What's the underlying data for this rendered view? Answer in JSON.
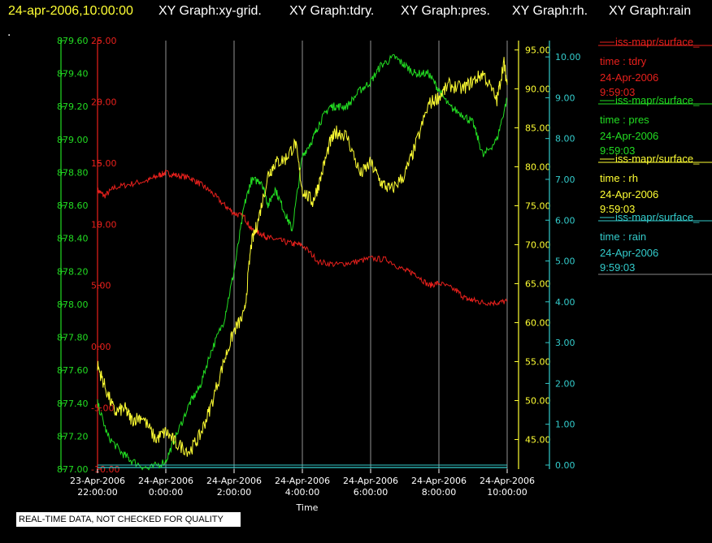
{
  "header": {
    "datetime": "24-apr-2006,10:00:00",
    "titles": [
      "XY Graph:xy-grid.",
      "XY Graph:tdry.",
      "XY Graph:pres.",
      "XY Graph:rh.",
      "XY Graph:rain"
    ],
    "dot": "."
  },
  "footer_note": "REAL-TIME DATA, NOT CHECKED FOR QUALITY",
  "colors": {
    "background": "#000000",
    "header_date": "#ffff33",
    "header_titles": "#ffffff",
    "tdry": "#e8201c",
    "pres": "#22dd22",
    "rh": "#ffff33",
    "rain": "#33cccc",
    "grid": "#b8b8b8",
    "axis_text": "#ffffff"
  },
  "legend": [
    {
      "line": "iss-mapr/surface_",
      "variable": "time : tdry",
      "date": "24-Apr-2006",
      "time": "9:59:03",
      "color": "#e8201c"
    },
    {
      "line": "iss-mapr/surface_",
      "variable": "time : pres",
      "date": "24-Apr-2006",
      "time": "9:59:03",
      "color": "#22dd22"
    },
    {
      "line": "iss-mapr/surface_",
      "variable": "time : rh",
      "date": "24-Apr-2006",
      "time": "9:59:03",
      "color": "#ffff33"
    },
    {
      "line": "iss-mapr/surface_",
      "variable": "time : rain",
      "date": "24-Apr-2006",
      "time": "9:59:03",
      "color": "#33cccc"
    }
  ],
  "chart_data": {
    "type": "line",
    "xlabel": "Time",
    "x_ticks": [
      {
        "date": "23-Apr-2006",
        "time": "22:00:00"
      },
      {
        "date": "24-Apr-2006",
        "time": "0:00:00"
      },
      {
        "date": "24-Apr-2006",
        "time": "2:00:00"
      },
      {
        "date": "24-Apr-2006",
        "time": "4:00:00"
      },
      {
        "date": "24-Apr-2006",
        "time": "6:00:00"
      },
      {
        "date": "24-Apr-2006",
        "time": "8:00:00"
      },
      {
        "date": "24-Apr-2006",
        "time": "10:00:00"
      }
    ],
    "x_range_hours": [
      -2,
      10
    ],
    "grid": "vertical lines at each time tick",
    "axes": [
      {
        "id": "pres",
        "side": "left-outer",
        "color": "#22dd22",
        "range": [
          877.0,
          879.6
        ],
        "ticks": [
          "877.00",
          "877.20",
          "877.40",
          "877.60",
          "877.80",
          "878.00",
          "878.20",
          "878.40",
          "878.60",
          "878.80",
          "879.00",
          "879.20",
          "879.40",
          "879.60"
        ]
      },
      {
        "id": "tdry",
        "side": "left-inner",
        "color": "#e8201c",
        "range": [
          -10,
          25
        ],
        "ticks": [
          "-10.00",
          "-5.00",
          "0.00",
          "5.00",
          "10.00",
          "15.00",
          "20.00",
          "25.00"
        ]
      },
      {
        "id": "rh",
        "side": "right-inner",
        "color": "#ffff33",
        "range": [
          41.2,
          96.2
        ],
        "ticks": [
          "45.00",
          "50.00",
          "55.00",
          "60.00",
          "65.00",
          "70.00",
          "75.00",
          "80.00",
          "85.00",
          "90.00",
          "95.00"
        ]
      },
      {
        "id": "rain",
        "side": "right-outer",
        "color": "#33cccc",
        "range": [
          -0.1,
          10.4
        ],
        "ticks": [
          "0.00",
          "1.00",
          "2.00",
          "3.00",
          "4.00",
          "5.00",
          "6.00",
          "7.00",
          "8.00",
          "9.00",
          "10.00"
        ]
      }
    ],
    "series": [
      {
        "name": "time : tdry",
        "axis": "tdry",
        "x": [
          22.0,
          22.2,
          22.5,
          23.0,
          23.5,
          23.8,
          24.0,
          24.3,
          24.7,
          25.0,
          25.3,
          25.7,
          26.0,
          26.3,
          26.5,
          26.8,
          27.0,
          27.3,
          27.7,
          28.0,
          28.5,
          29.0,
          29.5,
          30.0,
          30.5,
          31.0,
          31.3,
          31.7,
          32.0,
          32.5,
          32.8,
          33.0,
          33.3,
          33.7,
          34.0
        ],
        "y": [
          12.8,
          12.3,
          13.0,
          13.3,
          13.6,
          14.0,
          14.2,
          14.0,
          13.8,
          13.3,
          12.7,
          11.6,
          10.9,
          10.6,
          9.6,
          9.2,
          8.9,
          8.7,
          8.4,
          8.3,
          6.9,
          6.7,
          6.9,
          7.2,
          7.1,
          6.2,
          6.0,
          5.0,
          5.2,
          4.6,
          3.9,
          3.8,
          3.6,
          3.6,
          3.7
        ]
      },
      {
        "name": "time : pres",
        "axis": "pres",
        "x": [
          22.0,
          22.3,
          22.7,
          23.0,
          23.5,
          24.0,
          24.3,
          24.7,
          25.0,
          25.3,
          25.7,
          26.0,
          26.3,
          26.5,
          26.8,
          27.0,
          27.2,
          27.5,
          27.7,
          28.0,
          28.3,
          28.5,
          28.8,
          29.0,
          29.3,
          29.7,
          30.0,
          30.3,
          30.7,
          31.0,
          31.3,
          31.7,
          32.0,
          32.3,
          32.7,
          33.0,
          33.3,
          33.7,
          34.0
        ],
        "y": [
          877.4,
          877.2,
          877.1,
          877.05,
          877.0,
          877.05,
          877.2,
          877.4,
          877.5,
          877.7,
          877.9,
          878.2,
          878.6,
          878.75,
          878.75,
          878.6,
          878.7,
          878.55,
          878.45,
          878.9,
          879.0,
          879.1,
          879.2,
          879.2,
          879.2,
          879.3,
          879.35,
          879.45,
          879.5,
          879.45,
          879.4,
          879.4,
          879.3,
          879.2,
          879.15,
          879.1,
          878.9,
          879.0,
          879.25
        ]
      },
      {
        "name": "time : rh",
        "axis": "rh",
        "x": [
          22.0,
          22.2,
          22.5,
          22.8,
          23.0,
          23.3,
          23.7,
          24.0,
          24.3,
          24.7,
          25.0,
          25.3,
          25.7,
          26.0,
          26.3,
          26.5,
          26.7,
          27.0,
          27.2,
          27.5,
          27.8,
          28.0,
          28.3,
          28.5,
          28.8,
          29.0,
          29.3,
          29.7,
          30.0,
          30.3,
          30.6,
          31.0,
          31.3,
          31.7,
          32.0,
          32.3,
          32.7,
          33.0,
          33.3,
          33.7,
          33.9,
          34.0
        ],
        "y": [
          54.5,
          52,
          48.5,
          49,
          47.5,
          48,
          45,
          46,
          44.5,
          43.5,
          45.5,
          49,
          55,
          59,
          61,
          70,
          73,
          79,
          80.5,
          81,
          83,
          77,
          75.5,
          78,
          83,
          84.5,
          84,
          79,
          80.5,
          78,
          77,
          79,
          82.5,
          88,
          89,
          90.5,
          90,
          91,
          92,
          88.5,
          93.5,
          90.5
        ]
      },
      {
        "name": "time : rain",
        "axis": "rain",
        "x": [
          22.0,
          34.0
        ],
        "y": [
          0.0,
          0.0
        ]
      }
    ]
  }
}
